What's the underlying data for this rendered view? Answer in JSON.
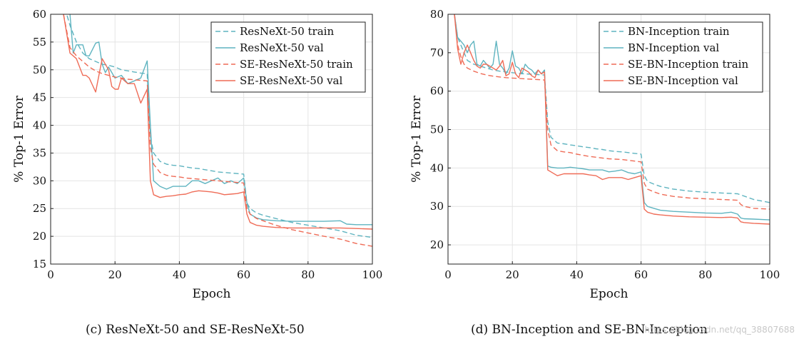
{
  "chart_data": [
    {
      "type": "line",
      "xlabel": "Epoch",
      "ylabel": "% Top-1 Error",
      "xlim": [
        0,
        100
      ],
      "ylim": [
        15,
        60
      ],
      "xticks": [
        0,
        20,
        40,
        60,
        80,
        100
      ],
      "yticks": [
        15,
        20,
        25,
        30,
        35,
        40,
        45,
        50,
        55,
        60
      ],
      "grid": true,
      "legend_position": "top-right",
      "series": [
        {
          "name": "ResNeXt-50 train",
          "color": "#5fb4c0",
          "dash": true,
          "x": [
            4,
            5,
            6,
            8,
            10,
            12,
            14,
            16,
            18,
            20,
            22,
            24,
            26,
            28,
            30,
            31,
            32,
            34,
            36,
            38,
            40,
            42,
            44,
            46,
            48,
            50,
            52,
            54,
            56,
            58,
            60,
            61,
            62,
            64,
            66,
            70,
            75,
            80,
            85,
            90,
            95,
            100
          ],
          "y": [
            61,
            60,
            58,
            55,
            53,
            52,
            51.5,
            51,
            50.8,
            50.5,
            50,
            49.8,
            49.6,
            49.4,
            49.3,
            38,
            35,
            33.5,
            33,
            32.8,
            32.7,
            32.5,
            32.3,
            32.2,
            32,
            31.8,
            31.6,
            31.5,
            31.4,
            31.3,
            31.2,
            26,
            25,
            24.2,
            23.8,
            23.2,
            22.5,
            22,
            21.5,
            21,
            20.2,
            19.8
          ]
        },
        {
          "name": "ResNeXt-50 val",
          "color": "#5fb4c0",
          "dash": false,
          "x": [
            4,
            6,
            7,
            8,
            10,
            11,
            12,
            14,
            15,
            16,
            17,
            18,
            20,
            22,
            24,
            26,
            28,
            30,
            31,
            32,
            34,
            36,
            38,
            40,
            42,
            44,
            46,
            48,
            50,
            52,
            54,
            56,
            58,
            60,
            61,
            62,
            64,
            66,
            70,
            75,
            80,
            85,
            90,
            92,
            95,
            100
          ],
          "y": [
            61,
            60,
            53,
            54.5,
            54.5,
            52.5,
            52.5,
            54.8,
            55,
            51,
            49.5,
            50.5,
            48.5,
            49,
            47.5,
            48,
            48.5,
            51.6,
            40,
            30,
            29,
            28.5,
            29,
            29,
            29,
            30,
            30,
            29.5,
            30,
            30.5,
            29.5,
            30,
            29.5,
            30.5,
            26,
            24,
            23.3,
            23,
            22.8,
            22.7,
            22.7,
            22.7,
            22.8,
            22.2,
            22.1,
            22.1
          ]
        },
        {
          "name": "SE-ResNeXt-50 train",
          "color": "#ef6c57",
          "dash": true,
          "x": [
            4,
            5,
            6,
            8,
            10,
            12,
            14,
            16,
            18,
            20,
            22,
            24,
            26,
            28,
            30,
            31,
            32,
            34,
            36,
            38,
            40,
            42,
            44,
            46,
            48,
            50,
            52,
            54,
            56,
            58,
            60,
            61,
            62,
            64,
            66,
            70,
            75,
            80,
            85,
            90,
            95,
            100
          ],
          "y": [
            60,
            57,
            54,
            52.5,
            51.5,
            50.5,
            49.8,
            49.3,
            49,
            48.7,
            48.5,
            48.3,
            48.2,
            48.1,
            48,
            36,
            33,
            31.5,
            31,
            30.8,
            30.7,
            30.5,
            30.4,
            30.3,
            30.2,
            30.1,
            30,
            29.9,
            29.8,
            29.7,
            29.6,
            25,
            24,
            23.2,
            22.8,
            22,
            21.2,
            20.6,
            20,
            19.5,
            18.7,
            18.2
          ]
        },
        {
          "name": "SE-ResNeXt-50 val",
          "color": "#ef6c57",
          "dash": false,
          "x": [
            4,
            6,
            8,
            10,
            11,
            12,
            14,
            16,
            18,
            19,
            20,
            21,
            22,
            24,
            26,
            28,
            30,
            31,
            32,
            34,
            36,
            38,
            40,
            42,
            44,
            46,
            48,
            50,
            52,
            54,
            56,
            58,
            60,
            61,
            62,
            64,
            66,
            70,
            75,
            80,
            85,
            90,
            95,
            100
          ],
          "y": [
            60,
            53,
            52,
            49,
            49,
            48.5,
            46,
            52,
            50,
            47,
            46.5,
            46.5,
            48.5,
            47.5,
            47.5,
            44,
            46.5,
            30,
            27.5,
            27,
            27.2,
            27.3,
            27.5,
            27.6,
            28,
            28.2,
            28.1,
            28,
            27.8,
            27.5,
            27.6,
            27.7,
            28,
            24,
            22.5,
            22,
            21.8,
            21.6,
            21.5,
            21.5,
            21.5,
            21.5,
            21.4,
            21.3
          ]
        }
      ]
    },
    {
      "type": "line",
      "xlabel": "Epoch",
      "ylabel": "% Top-1 Error",
      "xlim": [
        0,
        100
      ],
      "ylim": [
        15,
        80
      ],
      "xticks": [
        0,
        20,
        40,
        60,
        80,
        100
      ],
      "yticks": [
        20,
        30,
        40,
        50,
        60,
        70,
        80
      ],
      "grid": true,
      "legend_position": "top-right",
      "series": [
        {
          "name": "BN-Inception train",
          "color": "#5fb4c0",
          "dash": true,
          "x": [
            2,
            3,
            4,
            5,
            6,
            8,
            10,
            12,
            14,
            16,
            18,
            20,
            22,
            24,
            26,
            28,
            30,
            31,
            32,
            34,
            36,
            38,
            40,
            42,
            44,
            46,
            48,
            50,
            52,
            54,
            56,
            58,
            60,
            61,
            62,
            64,
            66,
            70,
            75,
            80,
            85,
            90,
            95,
            100
          ],
          "y": [
            80,
            74,
            72,
            70,
            68,
            67,
            66.5,
            66,
            65.5,
            65.2,
            65,
            64.8,
            64.6,
            64.5,
            64.4,
            64.3,
            64.2,
            52,
            48,
            46.5,
            46.3,
            46,
            45.8,
            45.5,
            45.3,
            45,
            44.8,
            44.5,
            44.3,
            44.2,
            44,
            43.8,
            43.6,
            38,
            36.5,
            35.8,
            35.2,
            34.5,
            34,
            33.7,
            33.5,
            33.3,
            31.8,
            31
          ]
        },
        {
          "name": "BN-Inception val",
          "color": "#5fb4c0",
          "dash": false,
          "x": [
            2,
            3,
            4,
            5,
            6,
            7,
            8,
            9,
            10,
            11,
            12,
            13,
            14,
            15,
            16,
            17,
            18,
            19,
            20,
            21,
            22,
            23,
            24,
            25,
            26,
            27,
            28,
            29,
            30,
            31,
            32,
            34,
            36,
            38,
            40,
            42,
            44,
            46,
            48,
            50,
            52,
            54,
            56,
            58,
            60,
            61,
            62,
            64,
            66,
            70,
            75,
            80,
            85,
            88,
            90,
            91,
            92,
            95,
            100
          ],
          "y": [
            80,
            74,
            73,
            72,
            70,
            72,
            73,
            67,
            66.5,
            68,
            67,
            66,
            67,
            73,
            67,
            66,
            64.5,
            66,
            70.5,
            66.5,
            66,
            64.5,
            67,
            66,
            65.5,
            64.5,
            65.5,
            64.5,
            65.5,
            40.5,
            40.2,
            40,
            40,
            40.2,
            40,
            39.8,
            39.5,
            39.5,
            39.5,
            39,
            39.2,
            39.5,
            38.8,
            38.5,
            39,
            31,
            30,
            29.5,
            29,
            28.7,
            28.5,
            28.3,
            28.2,
            28.5,
            28,
            27,
            26.8,
            26.7,
            26.5
          ]
        },
        {
          "name": "SE-BN-Inception train",
          "color": "#ef6c57",
          "dash": true,
          "x": [
            2,
            3,
            4,
            5,
            6,
            8,
            10,
            12,
            14,
            16,
            18,
            20,
            22,
            24,
            26,
            28,
            30,
            31,
            32,
            34,
            36,
            38,
            40,
            42,
            44,
            46,
            48,
            50,
            52,
            54,
            56,
            58,
            60,
            61,
            62,
            64,
            66,
            70,
            75,
            80,
            85,
            88,
            90,
            91,
            92,
            95,
            100
          ],
          "y": [
            80,
            72,
            69,
            67,
            66,
            65.2,
            64.6,
            64.2,
            63.9,
            63.7,
            63.5,
            63.4,
            63.3,
            63.2,
            63.1,
            63,
            62.9,
            50,
            46,
            44.5,
            44.2,
            44,
            43.6,
            43.3,
            43,
            42.8,
            42.6,
            42.4,
            42.3,
            42.2,
            42,
            41.8,
            41.6,
            36,
            34.5,
            33.8,
            33.2,
            32.6,
            32.2,
            32,
            31.8,
            31.7,
            31.6,
            30.5,
            30,
            29.5,
            29.3
          ]
        },
        {
          "name": "SE-BN-Inception val",
          "color": "#ef6c57",
          "dash": false,
          "x": [
            2,
            3,
            4,
            5,
            6,
            7,
            8,
            9,
            10,
            11,
            12,
            13,
            14,
            15,
            16,
            17,
            18,
            19,
            20,
            21,
            22,
            23,
            24,
            25,
            26,
            27,
            28,
            29,
            30,
            31,
            32,
            34,
            36,
            38,
            40,
            42,
            44,
            46,
            48,
            50,
            52,
            54,
            56,
            58,
            60,
            61,
            62,
            64,
            66,
            70,
            75,
            80,
            85,
            88,
            90,
            91,
            92,
            95,
            100
          ],
          "y": [
            80,
            71,
            67,
            70,
            72,
            70,
            68,
            66.5,
            66,
            67,
            67,
            66.5,
            66,
            65.5,
            66.5,
            68,
            64,
            64.5,
            67.5,
            64.5,
            63.5,
            66,
            65.5,
            65,
            64,
            63.5,
            65.5,
            64.5,
            65,
            39.5,
            39,
            38,
            38.5,
            38.5,
            38.5,
            38.5,
            38.2,
            38,
            37,
            37.5,
            37.5,
            37.5,
            37,
            37.5,
            38,
            29.3,
            28.5,
            28,
            27.8,
            27.5,
            27.3,
            27.2,
            27.1,
            27.2,
            27,
            26,
            25.8,
            25.6,
            25.4
          ]
        }
      ]
    }
  ],
  "captions": {
    "left": "(c) ResNeXt-50 and SE-ResNeXt-50",
    "right": "(d) BN-Inception and SE-BN-Inception"
  },
  "watermark": "https://blog.csdn.net/qq_38807688"
}
